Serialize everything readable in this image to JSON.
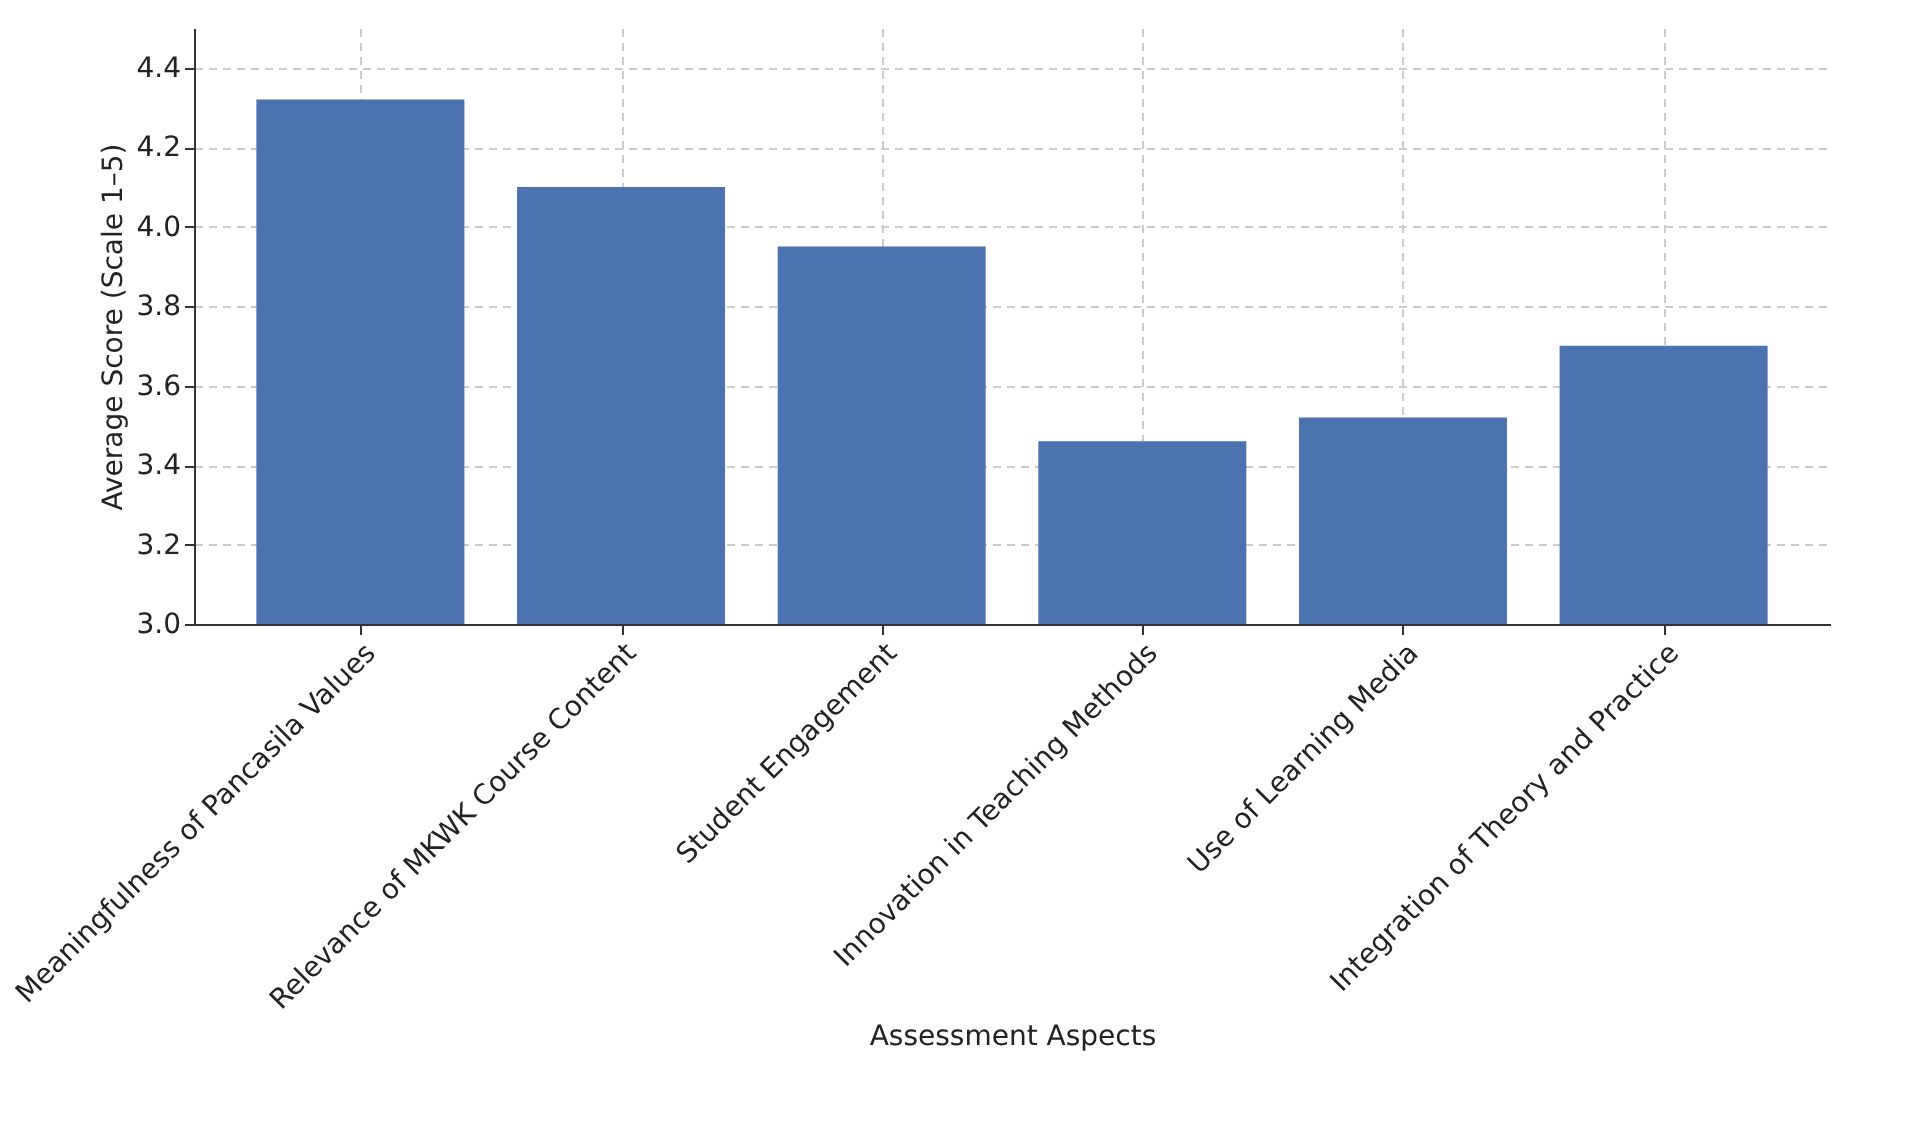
{
  "chart_data": {
    "type": "bar",
    "xlabel": "Assessment Aspects",
    "ylabel": "Average Score (Scale 1–5)",
    "categories": [
      "Meaningfulness of Pancasila Values",
      "Relevance of MKWK Course Content",
      "Student Engagement",
      "Innovation in Teaching Methods",
      "Use of Learning Media",
      "Integration of Theory and Practice"
    ],
    "values": [
      4.32,
      4.1,
      3.95,
      3.46,
      3.52,
      3.7
    ],
    "color": "#4c72b0",
    "ylim": [
      3.0,
      4.5
    ],
    "yticks": [
      {
        "value": 3,
        "label": "3.0"
      },
      3.2,
      3.4,
      3.6,
      3.8,
      {
        "value": 4,
        "label": "4.0"
      },
      4.2,
      4.4
    ],
    "grid": true,
    "line_style": "dashed"
  }
}
